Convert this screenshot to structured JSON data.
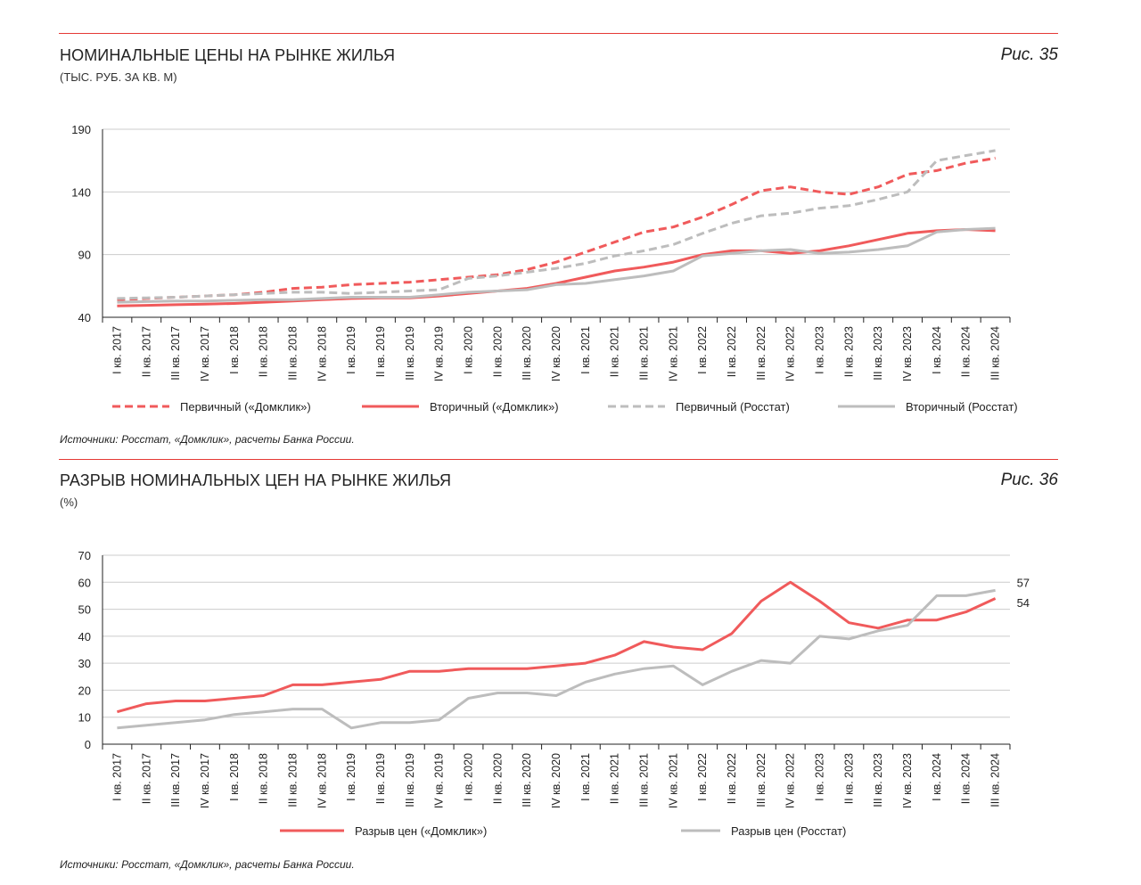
{
  "colors": {
    "red": "#f05a5b",
    "gray": "#bdbdbd",
    "rule": "#e53935",
    "grid": "#cccccc"
  },
  "fig35": {
    "title": "НОМИНАЛЬНЫЕ ЦЕНЫ НА РЫНКЕ ЖИЛЬЯ",
    "subtitle": "(ТЫС. РУБ. ЗА КВ. М)",
    "fig_label": "Рис. 35",
    "source": "Источники: Росстат, «Домклик», расчеты Банка России."
  },
  "fig36": {
    "title": "РАЗРЫВ НОМИНАЛЬНЫХ ЦЕН НА РЫНКЕ ЖИЛЬЯ",
    "subtitle": "(%)",
    "fig_label": "Рис. 36",
    "source": "Источники: Росстат, «Домклик», расчеты Банка России."
  },
  "chart_data": [
    {
      "type": "line",
      "categories": [
        "I кв. 2017",
        "II кв. 2017",
        "III кв. 2017",
        "IV кв. 2017",
        "I кв. 2018",
        "II кв. 2018",
        "III кв. 2018",
        "IV кв. 2018",
        "I кв. 2019",
        "II кв. 2019",
        "III кв. 2019",
        "IV кв. 2019",
        "I кв. 2020",
        "II кв. 2020",
        "III кв. 2020",
        "IV кв. 2020",
        "I кв. 2021",
        "II кв. 2021",
        "III кв. 2021",
        "IV кв. 2021",
        "I кв. 2022",
        "II кв. 2022",
        "III кв. 2022",
        "IV кв. 2022",
        "I кв. 2023",
        "II кв. 2023",
        "III кв. 2023",
        "IV кв. 2023",
        "I кв. 2024",
        "II кв. 2024",
        "III кв. 2024"
      ],
      "ylim": [
        40,
        190
      ],
      "yticks": [
        40,
        90,
        140,
        190
      ],
      "grid": true,
      "legend_position": "bottom",
      "series": [
        {
          "name": "Первичный («Домклик»)",
          "color": "red",
          "dash": true,
          "values": [
            54,
            55,
            56,
            57,
            58,
            60,
            63,
            64,
            66,
            67,
            68,
            70,
            72,
            74,
            78,
            84,
            92,
            100,
            108,
            112,
            120,
            130,
            141,
            144,
            140,
            138,
            144,
            154,
            157,
            163,
            167
          ]
        },
        {
          "name": "Вторичный («Домклик»)",
          "color": "red",
          "dash": false,
          "values": [
            49,
            49.5,
            50,
            50.5,
            51,
            52,
            53,
            54,
            55,
            55.5,
            55.5,
            57,
            59,
            61,
            63,
            67,
            72,
            77,
            80,
            84,
            90,
            93,
            93,
            91,
            93,
            97,
            102,
            107,
            109,
            110,
            109
          ]
        },
        {
          "name": "Первичный (Росстат)",
          "color": "gray",
          "dash": true,
          "values": [
            55,
            55.5,
            56,
            57,
            58,
            59,
            60,
            60,
            59,
            60,
            61,
            62,
            71,
            73,
            76,
            79,
            83,
            89,
            93,
            98,
            107,
            115,
            121,
            123,
            127,
            129,
            134,
            140,
            165,
            169,
            173
          ]
        },
        {
          "name": "Вторичный (Росстат)",
          "color": "gray",
          "dash": false,
          "values": [
            52,
            52.5,
            53,
            53,
            53.5,
            54,
            54,
            55,
            56,
            56,
            56,
            58,
            60,
            61,
            62,
            66,
            67,
            70,
            73,
            77,
            89,
            91,
            93,
            94,
            91,
            92,
            94,
            97,
            108,
            110,
            111
          ]
        }
      ]
    },
    {
      "type": "line",
      "categories": [
        "I кв. 2017",
        "II кв. 2017",
        "III кв. 2017",
        "IV кв. 2017",
        "I кв. 2018",
        "II кв. 2018",
        "III кв. 2018",
        "IV кв. 2018",
        "I кв. 2019",
        "II кв. 2019",
        "III кв. 2019",
        "IV кв. 2019",
        "I кв. 2020",
        "II кв. 2020",
        "III кв. 2020",
        "IV кв. 2020",
        "I кв. 2021",
        "II кв. 2021",
        "III кв. 2021",
        "IV кв. 2021",
        "I кв. 2022",
        "II кв. 2022",
        "III кв. 2022",
        "IV кв. 2022",
        "I кв. 2023",
        "II кв. 2023",
        "III кв. 2023",
        "IV кв. 2023",
        "I кв. 2024",
        "II кв. 2024",
        "III кв. 2024"
      ],
      "ylim": [
        0,
        70
      ],
      "yticks": [
        0,
        10,
        20,
        30,
        40,
        50,
        60,
        70
      ],
      "grid": true,
      "legend_position": "bottom",
      "end_labels": [
        "57",
        "54"
      ],
      "series": [
        {
          "name": "Разрыв цен («Домклик»)",
          "color": "red",
          "dash": false,
          "values": [
            12,
            15,
            16,
            16,
            17,
            18,
            22,
            22,
            23,
            24,
            27,
            27,
            28,
            28,
            28,
            29,
            30,
            33,
            38,
            36,
            35,
            41,
            53,
            60,
            53,
            45,
            43,
            46,
            46,
            49,
            54
          ]
        },
        {
          "name": "Разрыв цен (Росстат)",
          "color": "gray",
          "dash": false,
          "values": [
            6,
            7,
            8,
            9,
            11,
            12,
            13,
            13,
            6,
            8,
            8,
            9,
            17,
            19,
            19,
            18,
            23,
            26,
            28,
            29,
            22,
            27,
            31,
            30,
            40,
            39,
            42,
            44,
            55,
            55,
            57
          ]
        }
      ]
    }
  ]
}
